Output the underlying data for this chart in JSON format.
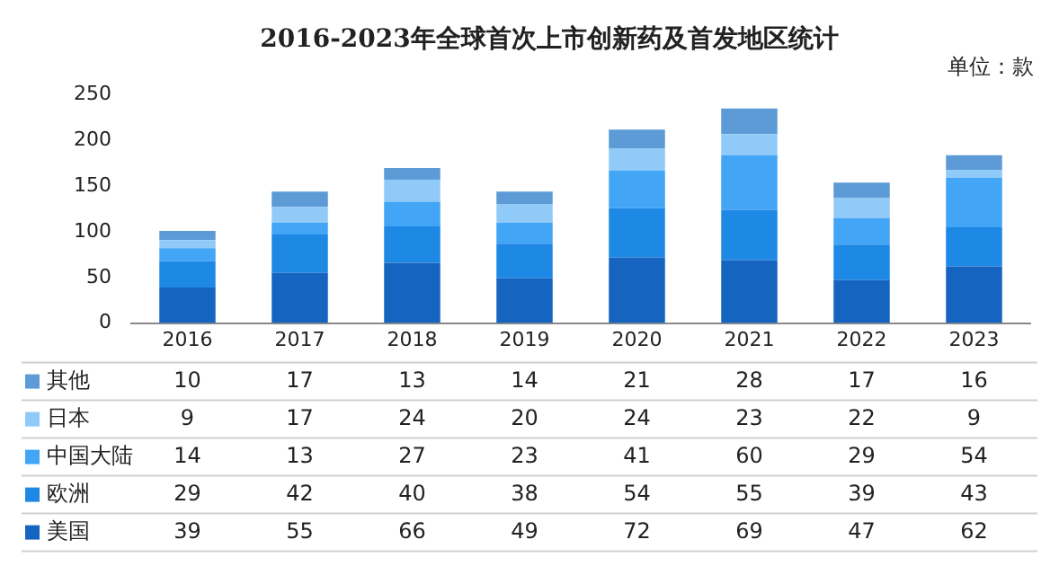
{
  "chart_data": {
    "type": "bar",
    "title": "2016-2023年全球首次上市创新药及首发地区统计",
    "ylabel": "单位：款",
    "categories": [
      "2016",
      "2017",
      "2018",
      "2019",
      "2020",
      "2021",
      "2022",
      "2023"
    ],
    "stacked": true,
    "data_labels": true,
    "legend": "bottom",
    "ylim": [
      0,
      250
    ],
    "yticks": [
      0,
      50,
      100,
      150,
      200,
      250
    ],
    "series": [
      {
        "name": "美国",
        "color": "#1565c0",
        "values": [
          39,
          55,
          66,
          49,
          72,
          69,
          47,
          62
        ]
      },
      {
        "name": "欧洲",
        "color": "#1e88e5",
        "values": [
          29,
          42,
          40,
          38,
          54,
          55,
          39,
          43
        ]
      },
      {
        "name": "中国大陆",
        "color": "#42a5f5",
        "values": [
          14,
          13,
          27,
          23,
          41,
          60,
          29,
          54
        ]
      },
      {
        "name": "日本",
        "color": "#90caf9",
        "values": [
          9,
          17,
          24,
          20,
          24,
          23,
          22,
          9
        ]
      },
      {
        "name": "其他",
        "color": "#5c9bd6",
        "values": [
          10,
          17,
          13,
          14,
          21,
          28,
          17,
          16
        ]
      }
    ]
  }
}
